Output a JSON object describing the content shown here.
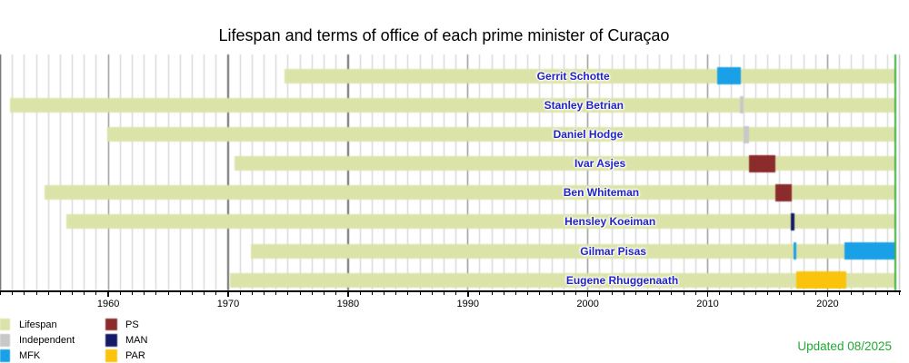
{
  "title": "Lifespan and terms of office of each prime minister of Curaçao",
  "updated_label": "Updated 08/2025",
  "colors": {
    "lifespan": "#dce3a8",
    "independent": "#c8c8c8",
    "mfk": "#1aa0e6",
    "ps": "#8c2b2b",
    "man": "#141a66",
    "par": "#f9c40b",
    "now_line": "#3aaf3a",
    "minister_name_text": "#2222cc",
    "updated_text": "#22aa33",
    "minor_gridline": "#c9c9ce",
    "decade_gridline": "#6a6a6a",
    "start_axis_line": "#1a1a1a",
    "end_gridline": "#b0b0b0"
  },
  "legend": {
    "items": [
      {
        "label": "Lifespan",
        "color_key": "lifespan",
        "column": 0,
        "row": 0
      },
      {
        "label": "Independent",
        "color_key": "independent",
        "column": 0,
        "row": 1
      },
      {
        "label": "MFK",
        "color_key": "mfk",
        "column": 0,
        "row": 2
      },
      {
        "label": "PS",
        "color_key": "ps",
        "column": 1,
        "row": 0
      },
      {
        "label": "MAN",
        "color_key": "man",
        "column": 1,
        "row": 1
      },
      {
        "label": "PAR",
        "color_key": "par",
        "column": 1,
        "row": 2
      }
    ]
  },
  "chart_data": {
    "type": "timeline",
    "title": "Lifespan and terms of office of each prime minister of Curaçao",
    "xlabel": "",
    "ylabel": "",
    "x_axis": {
      "start_year": 1951,
      "end_year": 2026,
      "decade_tick_labels": [
        "1960",
        "1970",
        "1980",
        "1990",
        "2000",
        "2010",
        "2020"
      ],
      "decade_tick_years": [
        1960,
        1970,
        1980,
        1990,
        2000,
        2010,
        2020
      ],
      "minor_tick_interval_years": 1,
      "grid": "on"
    },
    "now_year": 2025.64,
    "legend_position": "bottom-left",
    "series_meaning": "Each row: pale bar = lifespan from birth to present; coloured overlay = term of office coloured by party",
    "ministers": [
      {
        "name": "Gerrit Schotte",
        "birth_year": 1974.7,
        "label_center_year": 1998.79,
        "terms": [
          {
            "party": "MFK",
            "start": 2010.78,
            "end": 2012.8
          }
        ]
      },
      {
        "name": "Stanley Betrian",
        "birth_year": 1951.81,
        "label_center_year": 1999.67,
        "terms": [
          {
            "party": "Independent",
            "start": 2012.7,
            "end": 2013.01
          }
        ]
      },
      {
        "name": "Daniel Hodge",
        "birth_year": 1959.91,
        "label_center_year": 2000.02,
        "terms": [
          {
            "party": "Independent",
            "start": 2012.98,
            "end": 2013.48
          }
        ]
      },
      {
        "name": "Ivar Asjes",
        "birth_year": 1970.53,
        "label_center_year": 2001.02,
        "terms": [
          {
            "party": "PS",
            "start": 2013.43,
            "end": 2015.63
          }
        ]
      },
      {
        "name": "Ben Whiteman",
        "birth_year": 1954.68,
        "label_center_year": 2001.12,
        "terms": [
          {
            "party": "PS",
            "start": 2015.64,
            "end": 2016.99
          }
        ]
      },
      {
        "name": "Hensley Koeiman",
        "birth_year": 1956.48,
        "label_center_year": 2001.86,
        "terms": [
          {
            "party": "MAN",
            "start": 2016.95,
            "end": 2017.24
          }
        ]
      },
      {
        "name": "Gilmar Pisas",
        "birth_year": 1971.93,
        "label_center_year": 2002.12,
        "terms": [
          {
            "party": "MFK",
            "start": 2017.19,
            "end": 2017.39
          },
          {
            "party": "MFK",
            "start": 2021.43,
            "end": 2025.64
          }
        ]
      },
      {
        "name": "Eugene Rhuggenaath",
        "birth_year": 1970.12,
        "label_center_year": 2002.87,
        "terms": [
          {
            "party": "PAR",
            "start": 2017.37,
            "end": 2021.55
          }
        ]
      }
    ]
  }
}
